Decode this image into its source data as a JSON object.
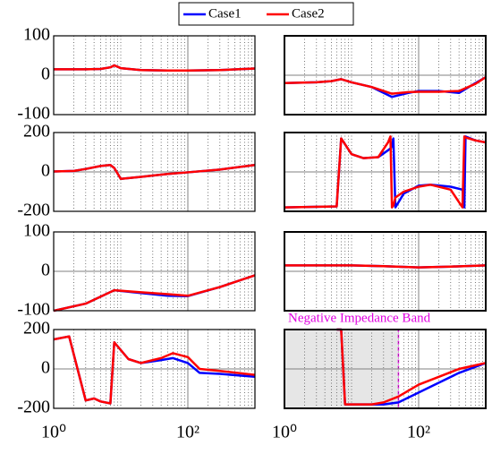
{
  "chart_data": [
    {
      "type": "line",
      "log_x": true,
      "xlim": [
        1,
        1000
      ],
      "xticks": [
        {
          "value": 1,
          "label": "10⁰"
        },
        {
          "value": 100,
          "label": "10²"
        }
      ],
      "xtick_labels": false,
      "ylim": [
        -100,
        100
      ],
      "yticks": [
        -100,
        0,
        100
      ],
      "ytick_labels": true,
      "x": [
        1,
        3,
        5,
        7,
        8,
        10,
        20,
        50,
        100,
        300,
        1000
      ],
      "series": [
        {
          "name": "Case1",
          "color": "#0000ff",
          "values": [
            15,
            15,
            16,
            20,
            25,
            18,
            13,
            12,
            12,
            13,
            17
          ]
        },
        {
          "name": "Case2",
          "color": "#ff0000",
          "values": [
            15,
            15,
            16,
            20,
            25,
            18,
            13,
            12,
            12,
            13,
            17
          ]
        }
      ]
    },
    {
      "type": "line",
      "log_x": true,
      "xlim": [
        1,
        1000
      ],
      "xticks": [
        {
          "value": 1,
          "label": "10⁰"
        },
        {
          "value": 100,
          "label": "10²"
        }
      ],
      "xtick_labels": false,
      "ylim": [
        -100,
        100
      ],
      "yticks": [
        -100,
        0,
        100
      ],
      "ytick_labels": false,
      "x": [
        1,
        3,
        5,
        7,
        10,
        20,
        40,
        70,
        100,
        200,
        400,
        700,
        1000
      ],
      "series": [
        {
          "color": "#0000ff",
          "values": [
            -20,
            -18,
            -15,
            -10,
            -18,
            -30,
            -55,
            -45,
            -40,
            -40,
            -45,
            -20,
            -5
          ]
        },
        {
          "color": "#ff0000",
          "values": [
            -20,
            -18,
            -15,
            -10,
            -18,
            -30,
            -47,
            -43,
            -42,
            -42,
            -40,
            -22,
            -5
          ]
        }
      ]
    },
    {
      "type": "line",
      "log_x": true,
      "xlim": [
        1,
        1000
      ],
      "xticks": [
        {
          "value": 1,
          "label": "10⁰"
        },
        {
          "value": 100,
          "label": "10²"
        }
      ],
      "xtick_labels": false,
      "ylim": [
        -200,
        200
      ],
      "yticks": [
        -200,
        0,
        200
      ],
      "ytick_labels": true,
      "x": [
        1,
        2,
        3,
        5,
        7,
        8,
        10,
        20,
        50,
        100,
        300,
        1000
      ],
      "series": [
        {
          "color": "#0000ff",
          "values": [
            2,
            5,
            15,
            30,
            35,
            20,
            -35,
            -25,
            -10,
            -2,
            12,
            35
          ]
        },
        {
          "color": "#ff0000",
          "values": [
            2,
            5,
            15,
            30,
            35,
            20,
            -35,
            -25,
            -10,
            -2,
            12,
            35
          ]
        }
      ]
    },
    {
      "type": "line",
      "log_x": true,
      "xlim": [
        1,
        1000
      ],
      "xticks": [
        {
          "value": 1,
          "label": "10⁰"
        },
        {
          "value": 100,
          "label": "10²"
        }
      ],
      "xtick_labels": false,
      "ylim": [
        -200,
        200
      ],
      "yticks": [
        -200,
        0,
        200
      ],
      "ytick_labels": false,
      "x": [
        1,
        6,
        7,
        10,
        15,
        25,
        35,
        38,
        40,
        42,
        45,
        60,
        100,
        150,
        300,
        450,
        480,
        500,
        700,
        1000
      ],
      "series": [
        {
          "color": "#0000ff",
          "values": [
            -180,
            -175,
            170,
            90,
            70,
            75,
            110,
            120,
            130,
            170,
            -180,
            -110,
            -70,
            -65,
            -75,
            -90,
            -180,
            180,
            160,
            150
          ]
        },
        {
          "color": "#ff0000",
          "values": [
            -180,
            -175,
            170,
            90,
            70,
            75,
            150,
            180,
            -180,
            -170,
            -130,
            -100,
            -75,
            -65,
            -90,
            -180,
            180,
            175,
            160,
            150
          ]
        }
      ]
    },
    {
      "type": "line",
      "log_x": true,
      "xlim": [
        1,
        1000
      ],
      "xticks": [
        {
          "value": 1,
          "label": "10⁰"
        },
        {
          "value": 100,
          "label": "10²"
        }
      ],
      "xtick_labels": false,
      "ylim": [
        -100,
        100
      ],
      "yticks": [
        -100,
        0,
        100
      ],
      "ytick_labels": true,
      "x": [
        1,
        3,
        8,
        20,
        50,
        100,
        300,
        1000
      ],
      "series": [
        {
          "color": "#0000ff",
          "values": [
            -100,
            -82,
            -48,
            -55,
            -62,
            -63,
            -40,
            -10
          ]
        },
        {
          "color": "#ff0000",
          "values": [
            -100,
            -82,
            -48,
            -53,
            -58,
            -62,
            -40,
            -10
          ]
        }
      ]
    },
    {
      "type": "line",
      "log_x": true,
      "xlim": [
        1,
        1000
      ],
      "xticks": [
        {
          "value": 1,
          "label": "10⁰"
        },
        {
          "value": 100,
          "label": "10²"
        }
      ],
      "xtick_labels": false,
      "ylim": [
        -100,
        100
      ],
      "yticks": [
        -100,
        0,
        100
      ],
      "ytick_labels": false,
      "x": [
        1,
        10,
        30,
        100,
        300,
        1000
      ],
      "series": [
        {
          "color": "#0000ff",
          "values": [
            15,
            15,
            13,
            10,
            12,
            15
          ]
        },
        {
          "color": "#ff0000",
          "values": [
            15,
            15,
            13,
            10,
            12,
            15
          ]
        }
      ]
    },
    {
      "type": "line",
      "log_x": true,
      "xlim": [
        1,
        1000
      ],
      "xticks": [
        {
          "value": 1,
          "label": "10⁰"
        },
        {
          "value": 100,
          "label": "10²"
        }
      ],
      "xtick_labels": true,
      "ylim": [
        -200,
        200
      ],
      "yticks": [
        -200,
        0,
        200
      ],
      "ytick_labels": true,
      "x": [
        1,
        1.7,
        3,
        4,
        5,
        7,
        8,
        13,
        20,
        40,
        60,
        100,
        150,
        300,
        1000
      ],
      "series": [
        {
          "color": "#0000ff",
          "values": [
            150,
            165,
            -160,
            -150,
            -165,
            -175,
            135,
            50,
            30,
            45,
            55,
            30,
            -20,
            -25,
            -40
          ]
        },
        {
          "color": "#ff0000",
          "values": [
            150,
            165,
            -160,
            -150,
            -165,
            -175,
            135,
            50,
            30,
            55,
            80,
            60,
            0,
            -10,
            -30
          ]
        }
      ]
    },
    {
      "type": "line",
      "log_x": true,
      "xlim": [
        1,
        1000
      ],
      "xticks": [
        {
          "value": 1,
          "label": "10⁰"
        },
        {
          "value": 100,
          "label": "10²"
        }
      ],
      "xtick_labels": true,
      "ylim": [
        -200,
        200
      ],
      "yticks": [
        -200,
        0,
        200
      ],
      "ytick_labels": false,
      "annotation": "Negative Impedance Band",
      "band_x": [
        1,
        50
      ],
      "x": [
        6,
        7,
        8,
        20,
        30,
        50,
        100,
        200,
        400,
        1000
      ],
      "series": [
        {
          "color": "#0000ff",
          "values": [
            200,
            200,
            -180,
            -180,
            -180,
            -170,
            -120,
            -70,
            -20,
            30
          ]
        },
        {
          "color": "#ff0000",
          "values": [
            200,
            200,
            -180,
            -180,
            -170,
            -140,
            -80,
            -40,
            0,
            30
          ]
        }
      ]
    }
  ]
}
